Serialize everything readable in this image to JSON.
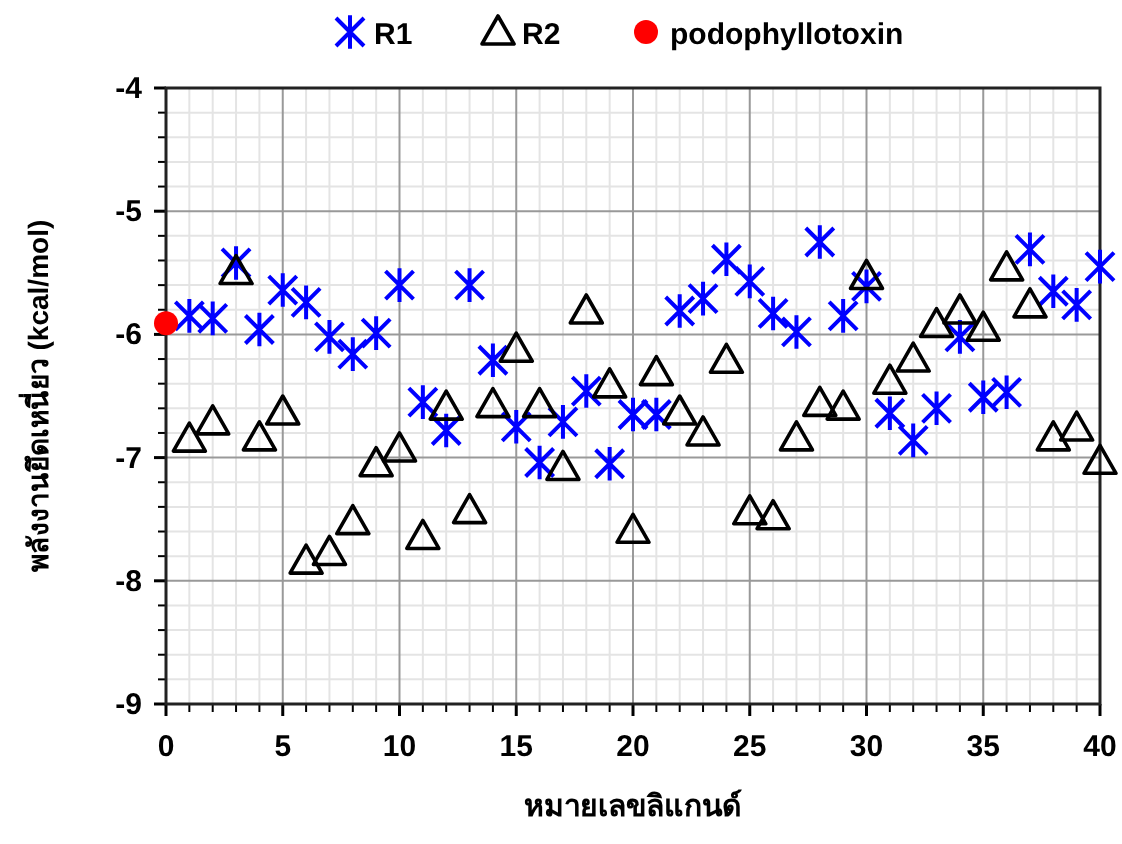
{
  "chart_data": {
    "type": "scatter",
    "xlabel": "หมายเลขลิแกนด์",
    "ylabel": "พลังงานยึดเหนี่ยว (kcal/mol)",
    "xlim": [
      0,
      40
    ],
    "xticks": [
      0,
      5,
      10,
      15,
      20,
      25,
      30,
      35,
      40
    ],
    "ylim": [
      -9,
      -4
    ],
    "yticks": [
      -9,
      -8,
      -7,
      -6,
      -5,
      -4
    ],
    "grid": true,
    "legend": "top",
    "series": [
      {
        "name": "R1",
        "color": "#0000ff",
        "marker": "cross",
        "x": [
          1,
          2,
          3,
          4,
          5,
          6,
          7,
          8,
          9,
          10,
          11,
          12,
          13,
          14,
          15,
          16,
          17,
          18,
          19,
          20,
          21,
          22,
          23,
          24,
          25,
          26,
          27,
          28,
          29,
          30,
          31,
          32,
          33,
          34,
          35,
          36,
          37,
          38,
          39,
          40
        ],
        "values": [
          -5.85,
          -5.87,
          -5.42,
          -5.96,
          -5.64,
          -5.74,
          -6.02,
          -6.16,
          -5.99,
          -5.6,
          -6.55,
          -6.78,
          -5.6,
          -6.21,
          -6.75,
          -7.04,
          -6.71,
          -6.46,
          -7.05,
          -6.65,
          -6.65,
          -5.81,
          -5.71,
          -5.39,
          -5.57,
          -5.83,
          -5.98,
          -5.25,
          -5.85,
          -5.61,
          -6.64,
          -6.86,
          -6.6,
          -6.02,
          -6.51,
          -6.47,
          -5.31,
          -5.65,
          -5.76,
          -5.45
        ]
      },
      {
        "name": "R2",
        "color": "#000000",
        "marker": "triangle",
        "x": [
          1,
          2,
          3,
          4,
          5,
          6,
          7,
          8,
          9,
          10,
          11,
          12,
          13,
          14,
          15,
          16,
          17,
          18,
          19,
          20,
          21,
          22,
          23,
          24,
          25,
          26,
          27,
          28,
          29,
          30,
          31,
          32,
          33,
          34,
          35,
          36,
          37,
          38,
          39,
          40
        ],
        "values": [
          -6.85,
          -6.71,
          -5.49,
          -6.84,
          -6.63,
          -7.84,
          -7.77,
          -7.52,
          -7.05,
          -6.93,
          -7.64,
          -6.59,
          -7.43,
          -6.57,
          -6.12,
          -6.57,
          -7.08,
          -5.81,
          -6.41,
          -7.59,
          -6.31,
          -6.63,
          -6.8,
          -6.21,
          -7.44,
          -7.48,
          -6.84,
          -6.56,
          -6.59,
          -5.53,
          -6.38,
          -6.2,
          -5.92,
          -5.81,
          -5.95,
          -5.46,
          -5.76,
          -6.84,
          -6.76,
          -7.03
        ]
      },
      {
        "name": "podophyllotoxin",
        "color": "#ff0000",
        "marker": "circle",
        "x": [
          0
        ],
        "values": [
          -5.91
        ]
      }
    ]
  }
}
